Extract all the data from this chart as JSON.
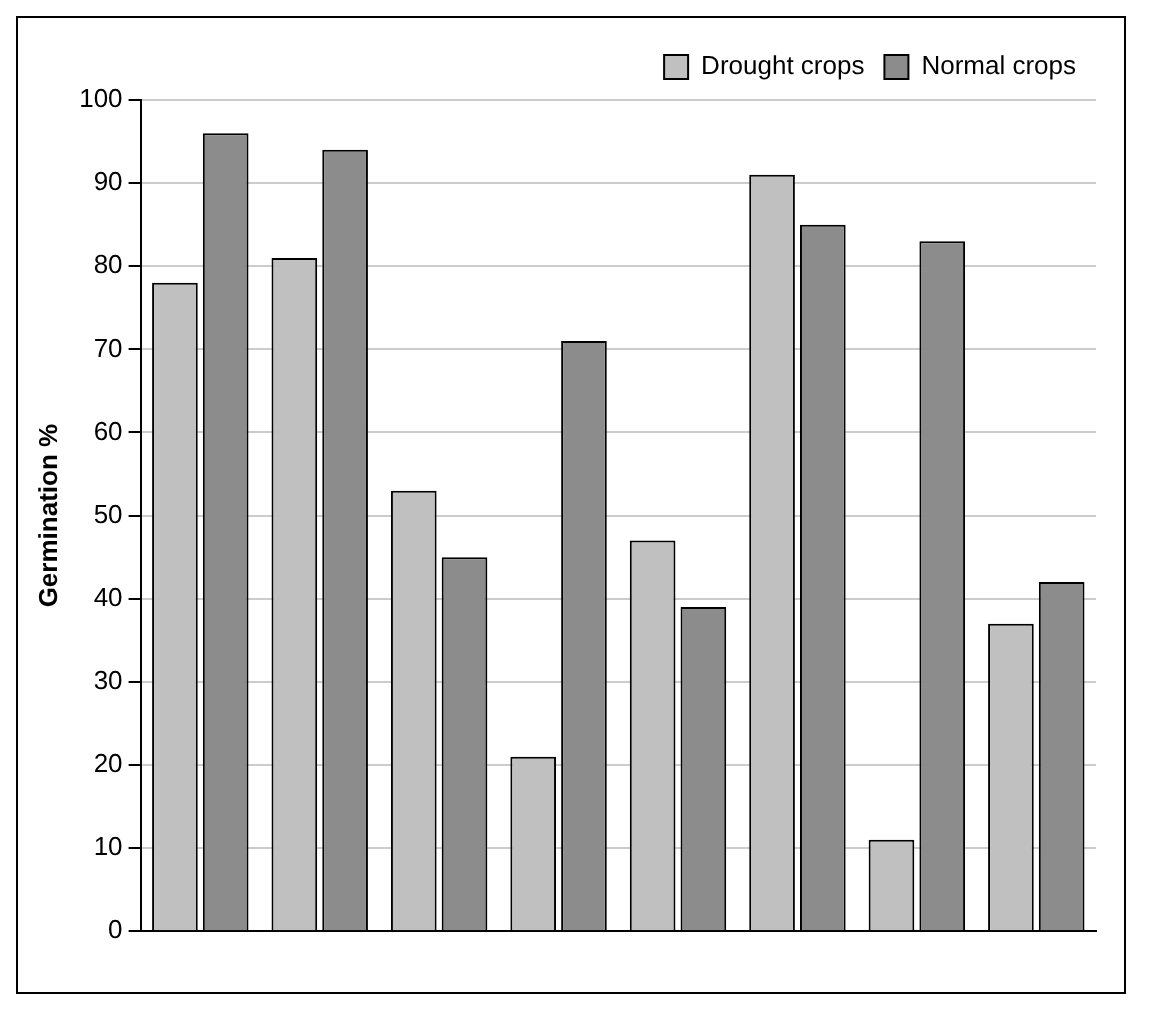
{
  "chart_data": {
    "type": "bar",
    "ylabel": "Germination %",
    "categories": [
      null,
      null,
      null,
      null,
      null,
      null,
      null,
      null
    ],
    "series": [
      {
        "name": "Drought crops",
        "color": "#c0c0c0",
        "values": [
          78,
          81,
          53,
          21,
          47,
          91,
          11,
          37
        ]
      },
      {
        "name": "Normal crops",
        "color": "#8c8c8c",
        "values": [
          96,
          94,
          45,
          71,
          39,
          85,
          83,
          42
        ]
      }
    ],
    "ylim": [
      0,
      100
    ],
    "yticks": [
      0,
      10,
      20,
      30,
      40,
      50,
      60,
      70,
      80,
      90,
      100
    ],
    "grid": "y",
    "legend": "top right"
  }
}
